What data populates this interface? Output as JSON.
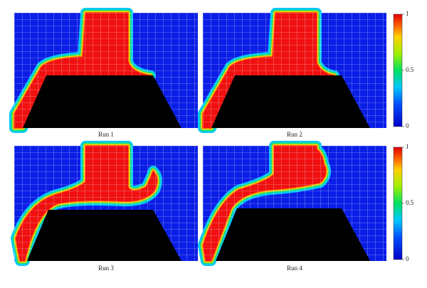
{
  "panels": [
    {
      "label": "Run 1"
    },
    {
      "label": "Run 2"
    },
    {
      "label": "Run 3"
    },
    {
      "label": "Run 4"
    }
  ],
  "colorbars": [
    {
      "lim": [
        0,
        1
      ],
      "ticks": [
        0,
        0.5,
        1
      ]
    },
    {
      "lim": [
        0,
        1
      ],
      "ticks": [
        0,
        0.5,
        1
      ]
    }
  ]
}
